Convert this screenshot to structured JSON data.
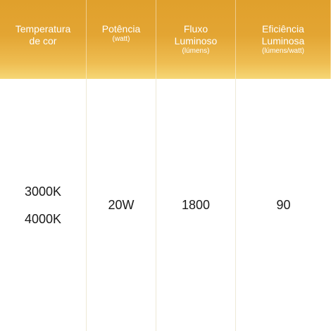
{
  "table": {
    "headers": [
      {
        "title_lines": [
          "Temperatura",
          "de cor"
        ],
        "unit": ""
      },
      {
        "title_lines": [
          "Potência"
        ],
        "unit": "(watt)"
      },
      {
        "title_lines": [
          "Fluxo",
          "Luminoso"
        ],
        "unit": "(lúmens)"
      },
      {
        "title_lines": [
          "Eficiência",
          "Luminosa"
        ],
        "unit": "(lúmens/watt)"
      }
    ],
    "row": {
      "color_temperatures": [
        "3000K",
        "4000K"
      ],
      "power": "20W",
      "flux": "1800",
      "efficiency": "90"
    }
  },
  "colors": {
    "header_gradient_top": "#e0a02c",
    "header_gradient_bottom": "#f6d776",
    "header_text": "#ffffff",
    "body_text": "#1a1a1a",
    "divider": "#eee9d6"
  }
}
